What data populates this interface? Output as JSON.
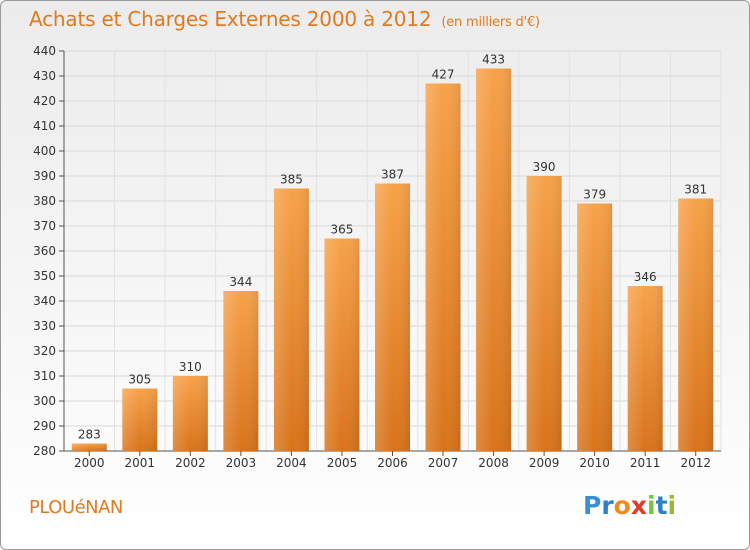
{
  "title": "Achats et Charges Externes 2000 à 2012",
  "unit": "(en milliers d'€)",
  "place": "PLOUéNAN",
  "logo": {
    "letters": [
      "P",
      "r",
      "o",
      "x",
      "i",
      "t",
      "i"
    ],
    "colors": [
      "#3a8fd0",
      "#2d7fc7",
      "#f08a1c",
      "#e23b2a",
      "#7cc242",
      "#2d7fc7",
      "#9ab834"
    ]
  },
  "colors": {
    "accent": "#e07a20",
    "bar_top": "#f7a24a",
    "bar_bottom": "#d8731b"
  },
  "chart_data": {
    "type": "bar",
    "title": "Achats et Charges Externes 2000 à 2012",
    "subtitle": "(en milliers d'€)",
    "categories": [
      "2000",
      "2001",
      "2002",
      "2003",
      "2004",
      "2005",
      "2006",
      "2007",
      "2008",
      "2009",
      "2010",
      "2011",
      "2012"
    ],
    "values": [
      283,
      305,
      310,
      344,
      385,
      365,
      387,
      427,
      433,
      390,
      379,
      346,
      381
    ],
    "ylim": [
      280,
      440
    ],
    "yticks": [
      280,
      290,
      300,
      310,
      320,
      330,
      340,
      350,
      360,
      370,
      380,
      390,
      400,
      410,
      420,
      430,
      440
    ],
    "grid": true,
    "xlabel": "",
    "ylabel": ""
  }
}
